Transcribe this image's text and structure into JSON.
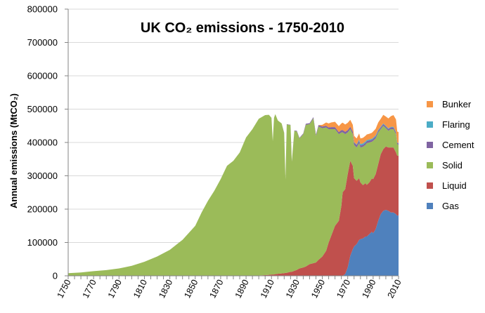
{
  "chart_data": {
    "type": "area",
    "stacked": true,
    "title": "UK CO₂ emissions - 1750-2010",
    "xlabel": "",
    "ylabel": "Annual emissions (MtCO₂)",
    "xlim": [
      1750,
      2010
    ],
    "ylim": [
      0,
      800000
    ],
    "x_ticks": [
      "1750",
      "1770",
      "1790",
      "1810",
      "1830",
      "1850",
      "1870",
      "1890",
      "1910",
      "1930",
      "1950",
      "1970",
      "1990",
      "2010"
    ],
    "x_minor_tick_step": 5,
    "y_ticks": [
      "0",
      "100000",
      "200000",
      "300000",
      "400000",
      "500000",
      "600000",
      "700000",
      "800000"
    ],
    "grid": true,
    "legend_position": "right",
    "x": [
      1750,
      1760,
      1770,
      1780,
      1790,
      1800,
      1810,
      1820,
      1830,
      1840,
      1850,
      1855,
      1860,
      1865,
      1870,
      1875,
      1880,
      1885,
      1890,
      1895,
      1900,
      1905,
      1908,
      1910,
      1911,
      1912,
      1913,
      1915,
      1918,
      1920,
      1921,
      1922,
      1925,
      1926,
      1928,
      1930,
      1932,
      1935,
      1937,
      1940,
      1943,
      1945,
      1947,
      1950,
      1953,
      1955,
      1957,
      1960,
      1963,
      1965,
      1966,
      1968,
      1970,
      1972,
      1974,
      1975,
      1977,
      1979,
      1980,
      1982,
      1984,
      1985,
      1987,
      1989,
      1990,
      1992,
      1994,
      1996,
      1998,
      2000,
      2002,
      2004,
      2006,
      2008,
      2009,
      2010
    ],
    "series": [
      {
        "name": "Gas",
        "color": "#4f81bd",
        "values": [
          0,
          0,
          0,
          0,
          0,
          0,
          0,
          0,
          0,
          0,
          0,
          0,
          0,
          0,
          0,
          0,
          0,
          0,
          0,
          0,
          0,
          0,
          0,
          0,
          0,
          0,
          0,
          0,
          0,
          0,
          0,
          0,
          0,
          0,
          0,
          0,
          0,
          0,
          0,
          0,
          0,
          0,
          0,
          0,
          0,
          0,
          0,
          0,
          0,
          0,
          500,
          5000,
          25000,
          60000,
          80000,
          88000,
          95000,
          108000,
          110000,
          112000,
          118000,
          118000,
          125000,
          132000,
          128000,
          140000,
          165000,
          185000,
          195000,
          198000,
          195000,
          190000,
          190000,
          185000,
          180000,
          182000
        ]
      },
      {
        "name": "Liquid",
        "color": "#c0504d",
        "values": [
          0,
          0,
          0,
          0,
          0,
          0,
          0,
          0,
          0,
          0,
          0,
          0,
          0,
          0,
          0,
          0,
          0,
          0,
          0,
          0,
          1000,
          2000,
          3000,
          4000,
          4000,
          4000,
          5000,
          6000,
          7000,
          8000,
          9000,
          9000,
          12000,
          12000,
          15000,
          18000,
          22000,
          25000,
          28000,
          35000,
          38000,
          40000,
          48000,
          58000,
          75000,
          100000,
          120000,
          150000,
          165000,
          210000,
          250000,
          255000,
          280000,
          285000,
          250000,
          205000,
          190000,
          185000,
          170000,
          160000,
          160000,
          155000,
          155000,
          160000,
          162000,
          165000,
          170000,
          180000,
          185000,
          190000,
          190000,
          195000,
          195000,
          185000,
          180000,
          178000
        ]
      },
      {
        "name": "Solid",
        "color": "#9bbb59",
        "values": [
          8000,
          10000,
          14000,
          17000,
          22000,
          30000,
          42000,
          58000,
          78000,
          108000,
          150000,
          190000,
          225000,
          255000,
          290000,
          330000,
          345000,
          370000,
          415000,
          440000,
          470000,
          480000,
          480000,
          470000,
          400000,
          470000,
          480000,
          460000,
          450000,
          420000,
          280000,
          445000,
          440000,
          330000,
          420000,
          415000,
          390000,
          400000,
          425000,
          420000,
          435000,
          380000,
          400000,
          385000,
          370000,
          340000,
          320000,
          290000,
          260000,
          220000,
          180000,
          165000,
          125000,
          95000,
          95000,
          100000,
          100000,
          105000,
          105000,
          115000,
          115000,
          125000,
          120000,
          110000,
          115000,
          107000,
          95000,
          75000,
          70000,
          55000,
          50000,
          55000,
          55000,
          55000,
          35000,
          33000
        ]
      },
      {
        "name": "Cement",
        "color": "#8064a2",
        "values": [
          0,
          0,
          0,
          0,
          0,
          0,
          0,
          0,
          0,
          0,
          0,
          0,
          0,
          0,
          0,
          0,
          0,
          0,
          0,
          0,
          0,
          0,
          0,
          0,
          0,
          0,
          0,
          0,
          0,
          1000,
          1000,
          1000,
          1000,
          1000,
          1000,
          2000,
          2000,
          2000,
          3000,
          3000,
          3000,
          4000,
          4000,
          5000,
          5000,
          5000,
          6000,
          6000,
          6000,
          7000,
          7000,
          7000,
          7000,
          7000,
          7000,
          7000,
          7000,
          7000,
          6000,
          6000,
          6000,
          6000,
          6000,
          6000,
          6000,
          6000,
          5000,
          5000,
          5000,
          5000,
          5000,
          5000,
          5000,
          5000,
          4000,
          4000
        ]
      },
      {
        "name": "Flaring",
        "color": "#4bacc6",
        "values": [
          0,
          0,
          0,
          0,
          0,
          0,
          0,
          0,
          0,
          0,
          0,
          0,
          0,
          0,
          0,
          0,
          0,
          0,
          0,
          0,
          0,
          0,
          0,
          0,
          0,
          0,
          0,
          0,
          0,
          0,
          0,
          0,
          0,
          0,
          0,
          0,
          0,
          0,
          0,
          0,
          0,
          0,
          0,
          0,
          0,
          0,
          0,
          0,
          0,
          0,
          0,
          0,
          0,
          0,
          1000,
          1000,
          2000,
          4000,
          4000,
          4000,
          4000,
          3000,
          3000,
          3000,
          3000,
          3000,
          3000,
          2000,
          2000,
          2000,
          2000,
          2000,
          2000,
          2000,
          1000,
          1000
        ]
      },
      {
        "name": "Bunker",
        "color": "#f79646",
        "values": [
          0,
          0,
          0,
          0,
          0,
          0,
          0,
          0,
          0,
          0,
          0,
          0,
          0,
          0,
          0,
          0,
          0,
          0,
          0,
          0,
          0,
          0,
          0,
          0,
          0,
          0,
          0,
          0,
          0,
          0,
          0,
          0,
          0,
          0,
          0,
          0,
          0,
          0,
          0,
          0,
          0,
          0,
          0,
          5000,
          10000,
          12000,
          14000,
          16000,
          18000,
          20000,
          22000,
          22000,
          22000,
          21000,
          20000,
          19000,
          18000,
          18000,
          17000,
          17000,
          17000,
          17000,
          17000,
          18000,
          19000,
          20000,
          22000,
          24000,
          26000,
          28000,
          30000,
          32000,
          35000,
          37000,
          33000,
          33000
        ]
      }
    ]
  }
}
